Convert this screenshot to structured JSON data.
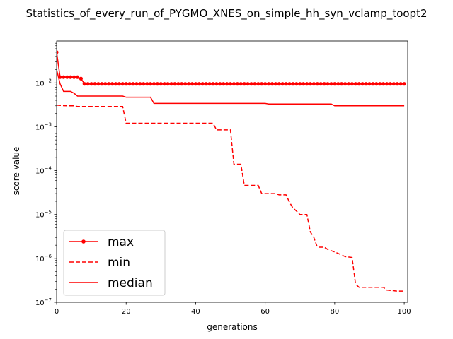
{
  "chart_data": {
    "type": "line",
    "title": "Statistics_of_every_run_of_PYGMO_XNES_on_simple_hh_syn_vclamp_toopt2",
    "xlabel": "generations",
    "ylabel": "score value",
    "xlim": [
      0,
      101
    ],
    "ylim": [
      1e-07,
      0.09
    ],
    "yscale": "log",
    "xticks": [
      0,
      20,
      40,
      60,
      80,
      100
    ],
    "xtick_labels": [
      "0",
      "20",
      "40",
      "60",
      "80",
      "100"
    ],
    "yticks": [
      1e-07,
      1e-06,
      1e-05,
      0.0001,
      0.001,
      0.01
    ],
    "ytick_labels": [
      {
        "base": "10",
        "exp": "−7"
      },
      {
        "base": "10",
        "exp": "−6"
      },
      {
        "base": "10",
        "exp": "−5"
      },
      {
        "base": "10",
        "exp": "−4"
      },
      {
        "base": "10",
        "exp": "−3"
      },
      {
        "base": "10",
        "exp": "−2"
      }
    ],
    "grid": false,
    "legend": "lower-left",
    "color": "#ff0000",
    "series": [
      {
        "name": "max",
        "style": "solid-dot",
        "points": [
          [
            0,
            0.05
          ],
          [
            1,
            0.0135
          ],
          [
            2,
            0.0135
          ],
          [
            3,
            0.0135
          ],
          [
            4,
            0.0135
          ],
          [
            5,
            0.0135
          ],
          [
            6,
            0.0135
          ],
          [
            7,
            0.0125
          ],
          [
            8,
            0.0095
          ],
          [
            9,
            0.0095
          ],
          [
            10,
            0.0095
          ],
          [
            11,
            0.0095
          ],
          [
            12,
            0.0095
          ],
          [
            13,
            0.0095
          ],
          [
            14,
            0.0095
          ],
          [
            15,
            0.0095
          ],
          [
            16,
            0.0095
          ],
          [
            17,
            0.0095
          ],
          [
            18,
            0.0095
          ],
          [
            19,
            0.0095
          ],
          [
            20,
            0.0095
          ],
          [
            21,
            0.0095
          ],
          [
            22,
            0.0095
          ],
          [
            23,
            0.0095
          ],
          [
            24,
            0.0095
          ],
          [
            25,
            0.0095
          ],
          [
            26,
            0.0095
          ],
          [
            27,
            0.0095
          ],
          [
            28,
            0.0095
          ],
          [
            29,
            0.0095
          ],
          [
            30,
            0.0095
          ],
          [
            31,
            0.0095
          ],
          [
            32,
            0.0095
          ],
          [
            33,
            0.0095
          ],
          [
            34,
            0.0095
          ],
          [
            35,
            0.0095
          ],
          [
            36,
            0.0095
          ],
          [
            37,
            0.0095
          ],
          [
            38,
            0.0095
          ],
          [
            39,
            0.0095
          ],
          [
            40,
            0.0095
          ],
          [
            41,
            0.0095
          ],
          [
            42,
            0.0095
          ],
          [
            43,
            0.0095
          ],
          [
            44,
            0.0095
          ],
          [
            45,
            0.0095
          ],
          [
            46,
            0.0095
          ],
          [
            47,
            0.0095
          ],
          [
            48,
            0.0095
          ],
          [
            49,
            0.0095
          ],
          [
            50,
            0.0095
          ],
          [
            51,
            0.0095
          ],
          [
            52,
            0.0095
          ],
          [
            53,
            0.0095
          ],
          [
            54,
            0.0095
          ],
          [
            55,
            0.0095
          ],
          [
            56,
            0.0095
          ],
          [
            57,
            0.0095
          ],
          [
            58,
            0.0095
          ],
          [
            59,
            0.0095
          ],
          [
            60,
            0.0095
          ],
          [
            61,
            0.0095
          ],
          [
            62,
            0.0095
          ],
          [
            63,
            0.0095
          ],
          [
            64,
            0.0095
          ],
          [
            65,
            0.0095
          ],
          [
            66,
            0.0095
          ],
          [
            67,
            0.0095
          ],
          [
            68,
            0.0095
          ],
          [
            69,
            0.0095
          ],
          [
            70,
            0.0095
          ],
          [
            71,
            0.0095
          ],
          [
            72,
            0.0095
          ],
          [
            73,
            0.0095
          ],
          [
            74,
            0.0095
          ],
          [
            75,
            0.0095
          ],
          [
            76,
            0.0095
          ],
          [
            77,
            0.0095
          ],
          [
            78,
            0.0095
          ],
          [
            79,
            0.0095
          ],
          [
            80,
            0.0095
          ],
          [
            81,
            0.0095
          ],
          [
            82,
            0.0095
          ],
          [
            83,
            0.0095
          ],
          [
            84,
            0.0095
          ],
          [
            85,
            0.0095
          ],
          [
            86,
            0.0095
          ],
          [
            87,
            0.0095
          ],
          [
            88,
            0.0095
          ],
          [
            89,
            0.0095
          ],
          [
            90,
            0.0095
          ],
          [
            91,
            0.0095
          ],
          [
            92,
            0.0095
          ],
          [
            93,
            0.0095
          ],
          [
            94,
            0.0095
          ],
          [
            95,
            0.0095
          ],
          [
            96,
            0.0095
          ],
          [
            97,
            0.0095
          ],
          [
            98,
            0.0095
          ],
          [
            99,
            0.0095
          ],
          [
            100,
            0.0095
          ]
        ]
      },
      {
        "name": "min",
        "style": "dashed",
        "points": [
          [
            0,
            0.0031
          ],
          [
            3,
            0.003
          ],
          [
            5,
            0.003
          ],
          [
            6,
            0.0029
          ],
          [
            19,
            0.0029
          ],
          [
            20,
            0.0012
          ],
          [
            45,
            0.0012
          ],
          [
            46,
            0.00085
          ],
          [
            50,
            0.00085
          ],
          [
            51,
            0.00014
          ],
          [
            53,
            0.00014
          ],
          [
            54,
            4.6e-05
          ],
          [
            58,
            4.6e-05
          ],
          [
            59,
            3e-05
          ],
          [
            63,
            3e-05
          ],
          [
            64,
            2.8e-05
          ],
          [
            66,
            2.8e-05
          ],
          [
            67,
            1.9e-05
          ],
          [
            68,
            1.4e-05
          ],
          [
            69,
            1.2e-05
          ],
          [
            70,
            1e-05
          ],
          [
            72,
            1e-05
          ],
          [
            73,
            4e-06
          ],
          [
            74,
            3e-06
          ],
          [
            75,
            1.8e-06
          ],
          [
            77,
            1.8e-06
          ],
          [
            78,
            1.6e-06
          ],
          [
            79,
            1.5e-06
          ],
          [
            80,
            1.4e-06
          ],
          [
            82,
            1.2e-06
          ],
          [
            83,
            1.1e-06
          ],
          [
            85,
            1.05e-06
          ],
          [
            86,
            2.6e-07
          ],
          [
            87,
            2.2e-07
          ],
          [
            94,
            2.2e-07
          ],
          [
            95,
            1.9e-07
          ],
          [
            98,
            1.8e-07
          ],
          [
            100,
            1.8e-07
          ]
        ]
      },
      {
        "name": "median",
        "style": "solid",
        "points": [
          [
            0,
            0.02
          ],
          [
            1,
            0.0095
          ],
          [
            2,
            0.0064
          ],
          [
            4,
            0.0064
          ],
          [
            5,
            0.0058
          ],
          [
            6,
            0.005
          ],
          [
            19,
            0.005
          ],
          [
            20,
            0.0047
          ],
          [
            27,
            0.0047
          ],
          [
            28,
            0.0034
          ],
          [
            60,
            0.0034
          ],
          [
            61,
            0.0033
          ],
          [
            79,
            0.0033
          ],
          [
            80,
            0.003
          ],
          [
            100,
            0.003
          ]
        ]
      }
    ]
  }
}
